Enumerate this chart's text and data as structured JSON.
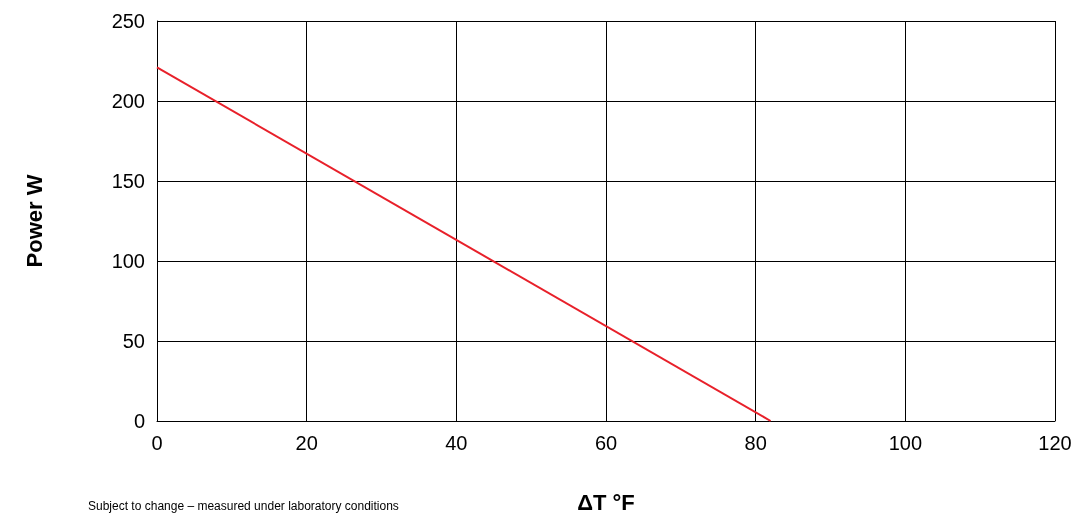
{
  "chart_data": {
    "type": "line",
    "xlabel": "ΔT °F",
    "ylabel": "Power W",
    "x": [
      0,
      82
    ],
    "series": [
      {
        "color": "#e8202a",
        "values": [
          221,
          0
        ]
      }
    ],
    "xlim": [
      0,
      120
    ],
    "xticks": [
      0,
      20,
      40,
      60,
      80,
      100,
      120
    ],
    "ylim": [
      0,
      250
    ],
    "yticks": [
      0,
      50,
      100,
      150,
      200,
      250
    ],
    "grid": true,
    "marker": "none",
    "line_style": "solid",
    "annotations": [
      "Subject to change – measured under laboratory conditions"
    ]
  }
}
